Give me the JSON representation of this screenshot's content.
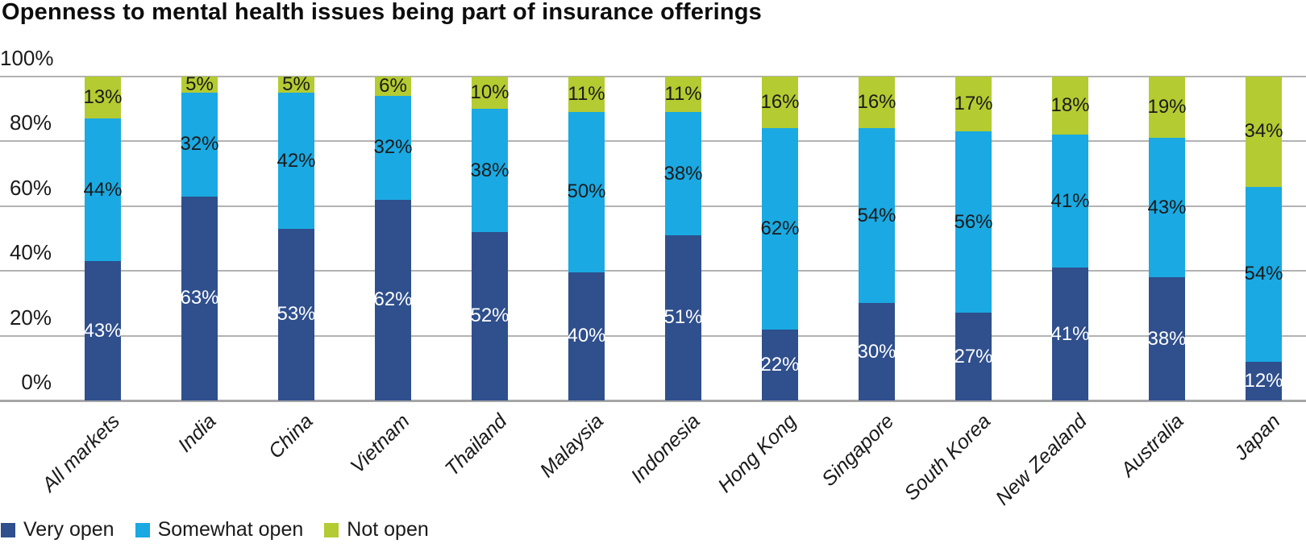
{
  "chart_data": {
    "type": "bar",
    "stacked": true,
    "title": "Openness to mental health issues being part of insurance offerings",
    "categories": [
      "All markets",
      "India",
      "China",
      "Vietnam",
      "Thailand",
      "Malaysia",
      "Indonesia",
      "Hong Kong",
      "Singapore",
      "South Korea",
      "New Zealand",
      "Australia",
      "Japan"
    ],
    "series": [
      {
        "name": "Very open",
        "color": "#2F4F8D",
        "label_color": "#FFFFFF",
        "values": [
          43,
          63,
          53,
          62,
          52,
          40,
          51,
          22,
          30,
          27,
          41,
          38,
          12
        ]
      },
      {
        "name": "Somewhat open",
        "color": "#1AA9E2",
        "label_color": "#1A1A1A",
        "values": [
          44,
          32,
          42,
          32,
          38,
          50,
          38,
          62,
          54,
          56,
          41,
          43,
          54
        ]
      },
      {
        "name": "Not open",
        "color": "#B4CB32",
        "label_color": "#1A1A1A",
        "values": [
          13,
          5,
          5,
          6,
          10,
          11,
          11,
          16,
          16,
          17,
          18,
          19,
          34
        ]
      }
    ],
    "value_suffix": "%",
    "y_axis": {
      "min": 0,
      "max": 100,
      "ticks": [
        "0%",
        "20%",
        "40%",
        "60%",
        "80%",
        "100%"
      ],
      "grid": true
    },
    "x_label_rotation": -45,
    "legend_position": "bottom-left",
    "grid_color": "#B3B3B3",
    "axis_line_color": "#A6A6A6"
  }
}
